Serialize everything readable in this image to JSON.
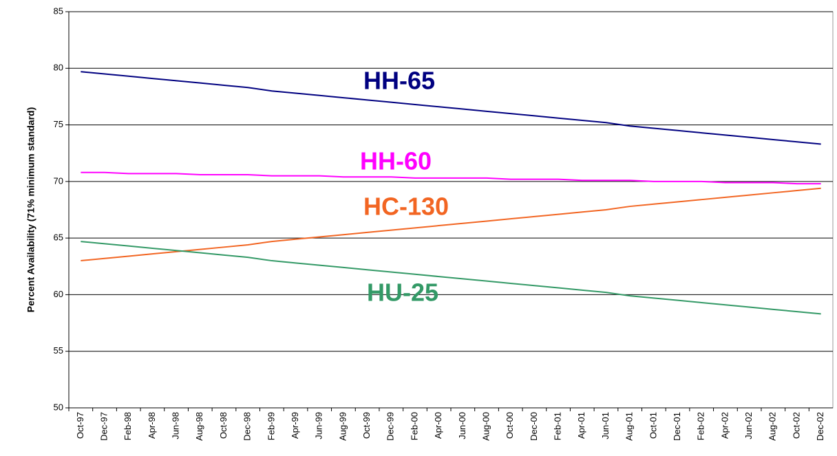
{
  "chart_data": {
    "type": "line",
    "y_label": "Percent Availability (71% minimum standard)",
    "categories": [
      "Oct-97",
      "Dec-97",
      "Feb-98",
      "Apr-98",
      "Jun-98",
      "Aug-98",
      "Oct-98",
      "Dec-98",
      "Feb-99",
      "Apr-99",
      "Jun-99",
      "Aug-99",
      "Oct-99",
      "Dec-99",
      "Feb-00",
      "Apr-00",
      "Jun-00",
      "Aug-00",
      "Oct-00",
      "Dec-00",
      "Feb-01",
      "Apr-01",
      "Jun-01",
      "Aug-01",
      "Oct-01",
      "Dec-01",
      "Feb-02",
      "Apr-02",
      "Jun-02",
      "Aug-02",
      "Oct-02",
      "Dec-02"
    ],
    "series": [
      {
        "name": "HH-65",
        "color": "#000080",
        "values": [
          79.7,
          79.5,
          79.3,
          79.1,
          78.9,
          78.7,
          78.5,
          78.3,
          78.0,
          77.8,
          77.6,
          77.4,
          77.2,
          77.0,
          76.8,
          76.6,
          76.4,
          76.2,
          76.0,
          75.8,
          75.6,
          75.4,
          75.2,
          74.9,
          74.7,
          74.5,
          74.3,
          74.1,
          73.9,
          73.7,
          73.5,
          73.3
        ]
      },
      {
        "name": "HH-60",
        "color": "#ff00ff",
        "values": [
          70.8,
          70.8,
          70.7,
          70.7,
          70.7,
          70.6,
          70.6,
          70.6,
          70.5,
          70.5,
          70.5,
          70.4,
          70.4,
          70.4,
          70.3,
          70.3,
          70.3,
          70.3,
          70.2,
          70.2,
          70.2,
          70.1,
          70.1,
          70.1,
          70.0,
          70.0,
          70.0,
          69.9,
          69.9,
          69.9,
          69.8,
          69.8
        ]
      },
      {
        "name": "HC-130",
        "color": "#f26522",
        "values": [
          63.0,
          63.2,
          63.4,
          63.6,
          63.8,
          64.0,
          64.2,
          64.4,
          64.7,
          64.9,
          65.1,
          65.3,
          65.5,
          65.7,
          65.9,
          66.1,
          66.3,
          66.5,
          66.7,
          66.9,
          67.1,
          67.3,
          67.5,
          67.8,
          68.0,
          68.2,
          68.4,
          68.6,
          68.8,
          69.0,
          69.2,
          69.4
        ]
      },
      {
        "name": "HU-25",
        "color": "#339966",
        "values": [
          64.7,
          64.5,
          64.3,
          64.1,
          63.9,
          63.7,
          63.5,
          63.3,
          63.0,
          62.8,
          62.6,
          62.4,
          62.2,
          62.0,
          61.8,
          61.6,
          61.4,
          61.2,
          61.0,
          60.8,
          60.6,
          60.4,
          60.2,
          59.9,
          59.7,
          59.5,
          59.3,
          59.1,
          58.9,
          58.7,
          58.5,
          58.3
        ]
      }
    ],
    "ylim": [
      50,
      85
    ],
    "yticks": [
      50,
      55,
      60,
      65,
      70,
      75,
      80,
      85
    ],
    "grid": true
  }
}
